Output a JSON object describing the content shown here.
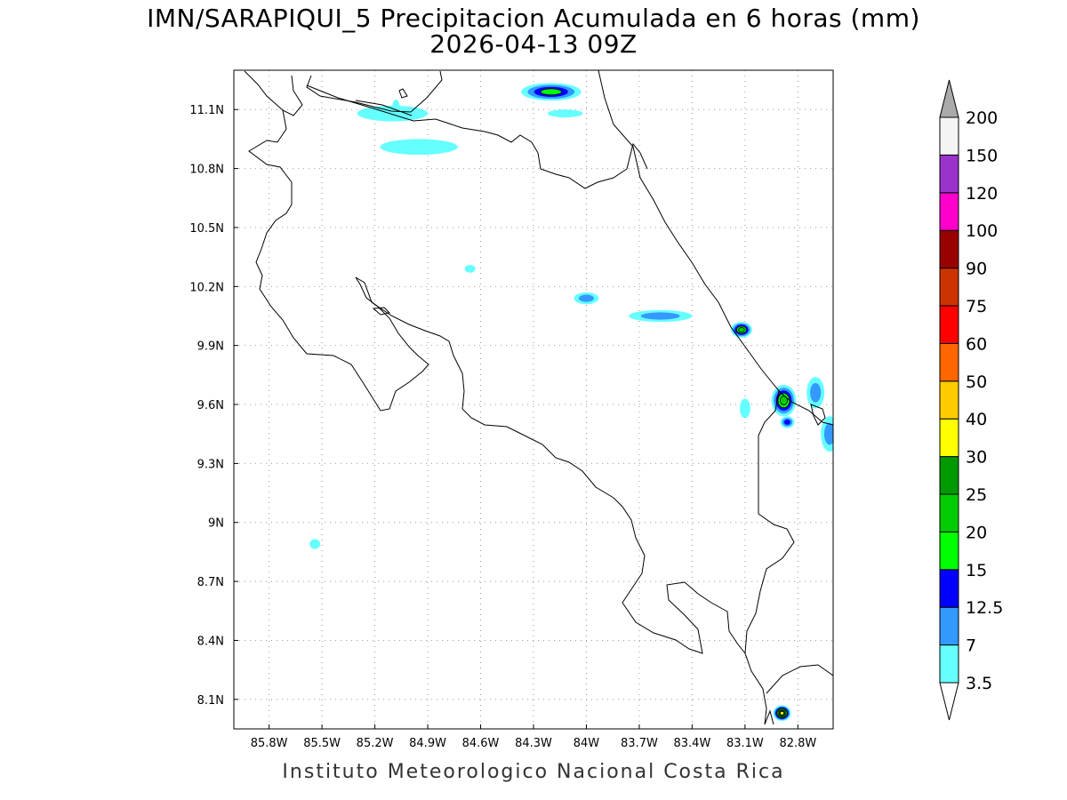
{
  "title": "IMN/SARAPIQUI_5 Precipitacion Acumulada en 6 horas (mm)",
  "subtitle": "2026-04-13 09Z",
  "credit": "Instituto Meteorologico Nacional Costa Rica",
  "map": {
    "lon_range": [
      -86.0,
      -82.6
    ],
    "lat_range": [
      7.95,
      11.3
    ],
    "lon_ticks": [
      {
        "value": -85.8,
        "label": "85.8W"
      },
      {
        "value": -85.5,
        "label": "85.5W"
      },
      {
        "value": -85.2,
        "label": "85.2W"
      },
      {
        "value": -84.9,
        "label": "84.9W"
      },
      {
        "value": -84.6,
        "label": "84.6W"
      },
      {
        "value": -84.3,
        "label": "84.3W"
      },
      {
        "value": -84.0,
        "label": "84W"
      },
      {
        "value": -83.7,
        "label": "83.7W"
      },
      {
        "value": -83.4,
        "label": "83.4W"
      },
      {
        "value": -83.1,
        "label": "83.1W"
      },
      {
        "value": -82.8,
        "label": "82.8W"
      }
    ],
    "lat_ticks": [
      {
        "value": 11.1,
        "label": "11.1N"
      },
      {
        "value": 10.8,
        "label": "10.8N"
      },
      {
        "value": 10.5,
        "label": "10.5N"
      },
      {
        "value": 10.2,
        "label": "10.2N"
      },
      {
        "value": 9.9,
        "label": "9.9N"
      },
      {
        "value": 9.6,
        "label": "9.6N"
      },
      {
        "value": 9.3,
        "label": "9.3N"
      },
      {
        "value": 9.0,
        "label": "9N"
      },
      {
        "value": 8.7,
        "label": "8.7N"
      },
      {
        "value": 8.4,
        "label": "8.4N"
      },
      {
        "value": 8.1,
        "label": "8.1N"
      }
    ],
    "grid": true
  },
  "colorbar": {
    "levels": [
      {
        "label": "3.5",
        "color": "#66ffff"
      },
      {
        "label": "7",
        "color": "#3399ff"
      },
      {
        "label": "12.5",
        "color": "#0000ff"
      },
      {
        "label": "15",
        "color": "#00ff00"
      },
      {
        "label": "20",
        "color": "#00cc00"
      },
      {
        "label": "25",
        "color": "#009900"
      },
      {
        "label": "30",
        "color": "#ffff00"
      },
      {
        "label": "40",
        "color": "#ffcc00"
      },
      {
        "label": "50",
        "color": "#ff6600"
      },
      {
        "label": "60",
        "color": "#ff0000"
      },
      {
        "label": "75",
        "color": "#cc3300"
      },
      {
        "label": "90",
        "color": "#990000"
      },
      {
        "label": "100",
        "color": "#ff00cc"
      },
      {
        "label": "120",
        "color": "#9933cc"
      },
      {
        "label": "150",
        "color": "#f4f4f4"
      },
      {
        "label": "200",
        "color": "#aaaaaa"
      }
    ]
  },
  "precip_cells": [
    {
      "lon": -84.2,
      "lat": 11.19,
      "rx": 0.17,
      "ry": 0.045,
      "level": 3
    },
    {
      "lon": -85.1,
      "lat": 11.08,
      "rx": 0.2,
      "ry": 0.04,
      "level": 0
    },
    {
      "lon": -84.95,
      "lat": 10.91,
      "rx": 0.22,
      "ry": 0.04,
      "level": 0
    },
    {
      "lon": -84.12,
      "lat": 11.08,
      "rx": 0.1,
      "ry": 0.02,
      "level": 0
    },
    {
      "lon": -84.0,
      "lat": 10.14,
      "rx": 0.07,
      "ry": 0.03,
      "level": 1
    },
    {
      "lon": -83.58,
      "lat": 10.05,
      "rx": 0.18,
      "ry": 0.03,
      "level": 1
    },
    {
      "lon": -83.12,
      "lat": 9.98,
      "rx": 0.06,
      "ry": 0.04,
      "level": 4
    },
    {
      "lon": -82.88,
      "lat": 9.62,
      "rx": 0.07,
      "ry": 0.08,
      "level": 4
    },
    {
      "lon": -82.86,
      "lat": 9.51,
      "rx": 0.04,
      "ry": 0.03,
      "level": 2
    },
    {
      "lon": -82.7,
      "lat": 9.66,
      "rx": 0.05,
      "ry": 0.08,
      "level": 1
    },
    {
      "lon": -82.62,
      "lat": 9.45,
      "rx": 0.05,
      "ry": 0.09,
      "level": 1
    },
    {
      "lon": -83.1,
      "lat": 9.58,
      "rx": 0.03,
      "ry": 0.05,
      "level": 0
    },
    {
      "lon": -85.54,
      "lat": 8.89,
      "rx": 0.03,
      "ry": 0.025,
      "level": 0
    },
    {
      "lon": -82.89,
      "lat": 8.03,
      "rx": 0.05,
      "ry": 0.04,
      "level": 6
    },
    {
      "lon": -84.66,
      "lat": 10.29,
      "rx": 0.03,
      "ry": 0.02,
      "level": 0
    },
    {
      "lon": -85.08,
      "lat": 11.12,
      "rx": 0.02,
      "ry": 0.03,
      "level": 0
    }
  ]
}
